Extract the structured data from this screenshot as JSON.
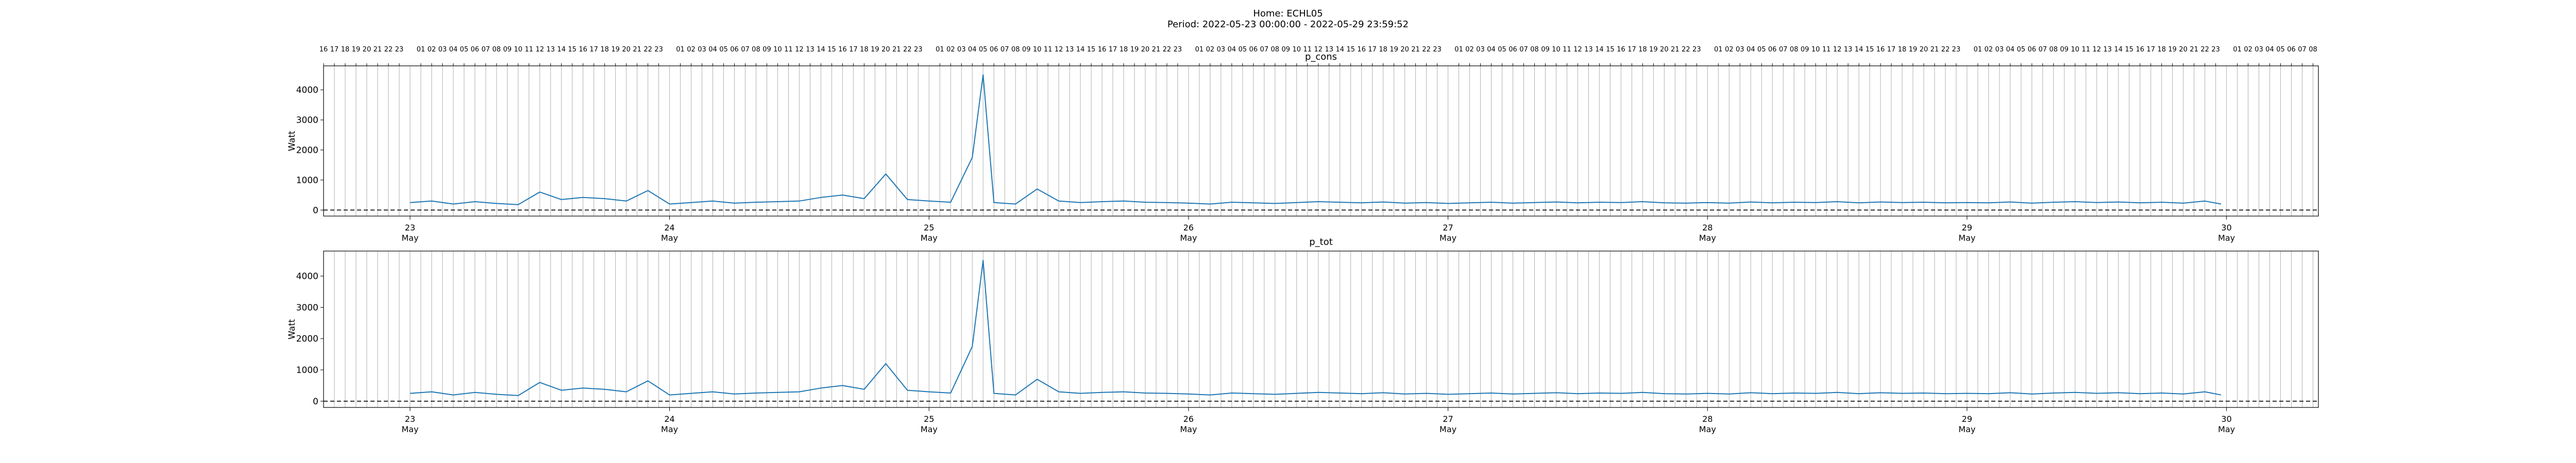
{
  "figure": {
    "home_label": "Home: ECHL05",
    "period_label": "Period: 2022-05-23 00:00:00 - 2022-05-29 23:59:52"
  },
  "chart_data": [
    {
      "type": "line",
      "title": "p_cons",
      "ylabel": "Watt",
      "xlabel": "",
      "ylim": [
        -200,
        4800
      ],
      "xlim": [
        "2022-05-22 16:00",
        "2022-05-30 08:30"
      ],
      "yticks": [
        0,
        1000,
        2000,
        3000,
        4000
      ],
      "date_ticks": [
        {
          "day": "23",
          "month": "May"
        },
        {
          "day": "24",
          "month": "May"
        },
        {
          "day": "25",
          "month": "May"
        },
        {
          "day": "26",
          "month": "May"
        },
        {
          "day": "27",
          "month": "May"
        },
        {
          "day": "28",
          "month": "May"
        },
        {
          "day": "29",
          "month": "May"
        },
        {
          "day": "30",
          "month": "May"
        }
      ],
      "hour_ticks_top": true,
      "vertical_hour_grid": true,
      "zero_line": "dashed",
      "color": "#1f77b4",
      "series": [
        {
          "x": [
            "2022-05-23 00:00",
            "2022-05-23 02:00",
            "2022-05-23 04:00",
            "2022-05-23 06:00",
            "2022-05-23 08:00",
            "2022-05-23 10:00",
            "2022-05-23 12:00",
            "2022-05-23 14:00",
            "2022-05-23 16:00",
            "2022-05-23 18:00",
            "2022-05-23 20:00",
            "2022-05-23 22:00",
            "2022-05-24 00:00",
            "2022-05-24 02:00",
            "2022-05-24 04:00",
            "2022-05-24 06:00",
            "2022-05-24 08:00",
            "2022-05-24 10:00",
            "2022-05-24 12:00",
            "2022-05-24 14:00",
            "2022-05-24 16:00",
            "2022-05-24 18:00",
            "2022-05-24 20:00",
            "2022-05-24 22:00",
            "2022-05-25 00:00",
            "2022-05-25 02:00",
            "2022-05-25 04:00",
            "2022-05-25 05:00",
            "2022-05-25 06:00",
            "2022-05-25 08:00",
            "2022-05-25 10:00",
            "2022-05-25 12:00",
            "2022-05-25 14:00",
            "2022-05-25 16:00",
            "2022-05-25 18:00",
            "2022-05-25 20:00",
            "2022-05-25 22:00",
            "2022-05-26 00:00",
            "2022-05-26 02:00",
            "2022-05-26 04:00",
            "2022-05-26 06:00",
            "2022-05-26 08:00",
            "2022-05-26 10:00",
            "2022-05-26 12:00",
            "2022-05-26 14:00",
            "2022-05-26 16:00",
            "2022-05-26 18:00",
            "2022-05-26 20:00",
            "2022-05-26 22:00",
            "2022-05-27 00:00",
            "2022-05-27 02:00",
            "2022-05-27 04:00",
            "2022-05-27 06:00",
            "2022-05-27 08:00",
            "2022-05-27 10:00",
            "2022-05-27 12:00",
            "2022-05-27 14:00",
            "2022-05-27 16:00",
            "2022-05-27 18:00",
            "2022-05-27 20:00",
            "2022-05-27 22:00",
            "2022-05-28 00:00",
            "2022-05-28 02:00",
            "2022-05-28 04:00",
            "2022-05-28 06:00",
            "2022-05-28 08:00",
            "2022-05-28 10:00",
            "2022-05-28 12:00",
            "2022-05-28 14:00",
            "2022-05-28 16:00",
            "2022-05-28 18:00",
            "2022-05-28 20:00",
            "2022-05-28 22:00",
            "2022-05-29 00:00",
            "2022-05-29 02:00",
            "2022-05-29 04:00",
            "2022-05-29 06:00",
            "2022-05-29 08:00",
            "2022-05-29 10:00",
            "2022-05-29 12:00",
            "2022-05-29 14:00",
            "2022-05-29 16:00",
            "2022-05-29 18:00",
            "2022-05-29 20:00",
            "2022-05-29 22:00",
            "2022-05-29 23:30"
          ],
          "y": [
            250,
            300,
            200,
            280,
            220,
            180,
            600,
            350,
            420,
            380,
            300,
            650,
            200,
            250,
            300,
            230,
            260,
            280,
            300,
            420,
            500,
            380,
            1200,
            350,
            300,
            260,
            1750,
            4500,
            250,
            200,
            700,
            300,
            250,
            280,
            300,
            260,
            250,
            230,
            200,
            260,
            240,
            220,
            250,
            280,
            260,
            240,
            270,
            230,
            250,
            220,
            240,
            260,
            230,
            250,
            270,
            240,
            260,
            250,
            280,
            240,
            230,
            250,
            230,
            270,
            240,
            260,
            250,
            280,
            240,
            270,
            250,
            260,
            240,
            250,
            240,
            270,
            230,
            260,
            280,
            250,
            270,
            240,
            260,
            230,
            300,
            200
          ]
        }
      ]
    },
    {
      "type": "line",
      "title": "p_tot",
      "ylabel": "Watt",
      "xlabel": "",
      "ylim": [
        -200,
        4800
      ],
      "xlim": [
        "2022-05-22 16:00",
        "2022-05-30 08:30"
      ],
      "yticks": [
        0,
        1000,
        2000,
        3000,
        4000
      ],
      "date_ticks": [
        {
          "day": "23",
          "month": "May"
        },
        {
          "day": "24",
          "month": "May"
        },
        {
          "day": "25",
          "month": "May"
        },
        {
          "day": "26",
          "month": "May"
        },
        {
          "day": "27",
          "month": "May"
        },
        {
          "day": "28",
          "month": "May"
        },
        {
          "day": "29",
          "month": "May"
        },
        {
          "day": "30",
          "month": "May"
        }
      ],
      "vertical_hour_grid": true,
      "zero_line": "dashed",
      "color": "#1f77b4",
      "series": [
        {
          "x": [
            "2022-05-23 00:00",
            "2022-05-23 02:00",
            "2022-05-23 04:00",
            "2022-05-23 06:00",
            "2022-05-23 08:00",
            "2022-05-23 10:00",
            "2022-05-23 12:00",
            "2022-05-23 14:00",
            "2022-05-23 16:00",
            "2022-05-23 18:00",
            "2022-05-23 20:00",
            "2022-05-23 22:00",
            "2022-05-24 00:00",
            "2022-05-24 02:00",
            "2022-05-24 04:00",
            "2022-05-24 06:00",
            "2022-05-24 08:00",
            "2022-05-24 10:00",
            "2022-05-24 12:00",
            "2022-05-24 14:00",
            "2022-05-24 16:00",
            "2022-05-24 18:00",
            "2022-05-24 20:00",
            "2022-05-24 22:00",
            "2022-05-25 00:00",
            "2022-05-25 02:00",
            "2022-05-25 04:00",
            "2022-05-25 05:00",
            "2022-05-25 06:00",
            "2022-05-25 08:00",
            "2022-05-25 10:00",
            "2022-05-25 12:00",
            "2022-05-25 14:00",
            "2022-05-25 16:00",
            "2022-05-25 18:00",
            "2022-05-25 20:00",
            "2022-05-25 22:00",
            "2022-05-26 00:00",
            "2022-05-26 02:00",
            "2022-05-26 04:00",
            "2022-05-26 06:00",
            "2022-05-26 08:00",
            "2022-05-26 10:00",
            "2022-05-26 12:00",
            "2022-05-26 14:00",
            "2022-05-26 16:00",
            "2022-05-26 18:00",
            "2022-05-26 20:00",
            "2022-05-26 22:00",
            "2022-05-27 00:00",
            "2022-05-27 02:00",
            "2022-05-27 04:00",
            "2022-05-27 06:00",
            "2022-05-27 08:00",
            "2022-05-27 10:00",
            "2022-05-27 12:00",
            "2022-05-27 14:00",
            "2022-05-27 16:00",
            "2022-05-27 18:00",
            "2022-05-27 20:00",
            "2022-05-27 22:00",
            "2022-05-28 00:00",
            "2022-05-28 02:00",
            "2022-05-28 04:00",
            "2022-05-28 06:00",
            "2022-05-28 08:00",
            "2022-05-28 10:00",
            "2022-05-28 12:00",
            "2022-05-28 14:00",
            "2022-05-28 16:00",
            "2022-05-28 18:00",
            "2022-05-28 20:00",
            "2022-05-28 22:00",
            "2022-05-29 00:00",
            "2022-05-29 02:00",
            "2022-05-29 04:00",
            "2022-05-29 06:00",
            "2022-05-29 08:00",
            "2022-05-29 10:00",
            "2022-05-29 12:00",
            "2022-05-29 14:00",
            "2022-05-29 16:00",
            "2022-05-29 18:00",
            "2022-05-29 20:00",
            "2022-05-29 22:00",
            "2022-05-29 23:30"
          ],
          "y": [
            250,
            300,
            200,
            280,
            220,
            180,
            600,
            350,
            420,
            380,
            300,
            650,
            200,
            250,
            300,
            230,
            260,
            280,
            300,
            420,
            500,
            380,
            1200,
            350,
            300,
            260,
            1750,
            4500,
            250,
            200,
            700,
            300,
            250,
            280,
            300,
            260,
            250,
            230,
            200,
            260,
            240,
            220,
            250,
            280,
            260,
            240,
            270,
            230,
            250,
            220,
            240,
            260,
            230,
            250,
            270,
            240,
            260,
            250,
            280,
            240,
            230,
            250,
            230,
            270,
            240,
            260,
            250,
            280,
            240,
            270,
            250,
            260,
            240,
            250,
            240,
            270,
            230,
            260,
            280,
            250,
            270,
            240,
            260,
            230,
            300,
            200
          ]
        }
      ]
    }
  ]
}
